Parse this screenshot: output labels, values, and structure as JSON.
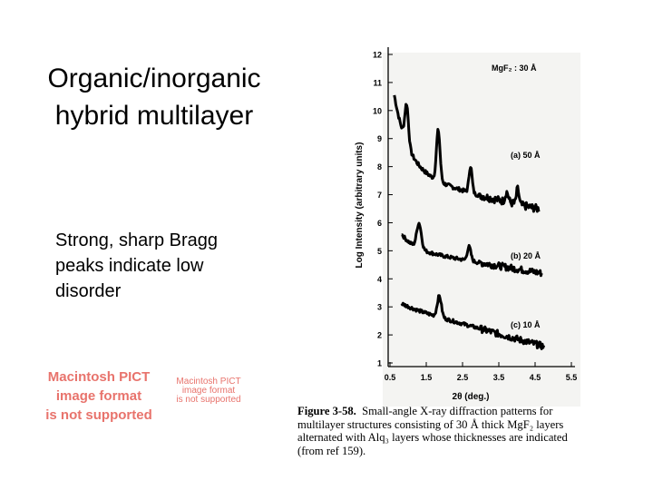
{
  "slide": {
    "title_lines": [
      "Organic/inorganic",
      "hybrid multilayer"
    ],
    "bullet_lines": [
      "Strong, sharp Bragg",
      "peaks indicate low",
      "disorder"
    ],
    "placeholder_large_lines": [
      "Macintosh PICT",
      "image format",
      "is not supported"
    ],
    "placeholder_small_lines": [
      "Macintosh PICT",
      "image format",
      "is not supported"
    ]
  },
  "figure": {
    "y_axis_label": "Log Intensity (arbitrary units)",
    "x_axis_label": "2θ (deg.)",
    "y_ticks": [
      "1",
      "2",
      "3",
      "4",
      "5",
      "6",
      "7",
      "8",
      "9",
      "10",
      "11",
      "12"
    ],
    "x_ticks": [
      "0.5",
      "1.5",
      "2.5",
      "3.5",
      "4.5",
      "5.5"
    ],
    "annotation_top": "MgF₂ : 30 Å",
    "curve_labels": [
      "(a) 50 Å",
      "(b) 20 Å",
      "(c) 10 Å"
    ],
    "caption_label": "Figure 3-58.",
    "caption_lines": [
      "Small-angle X-ray diffraction patterns for",
      "multilayer structures consisting of 30 Å thick MgF₂ layers",
      "alternated with Alq₃ layers whose thicknesses are indicated",
      "(from ref 159)."
    ]
  }
}
